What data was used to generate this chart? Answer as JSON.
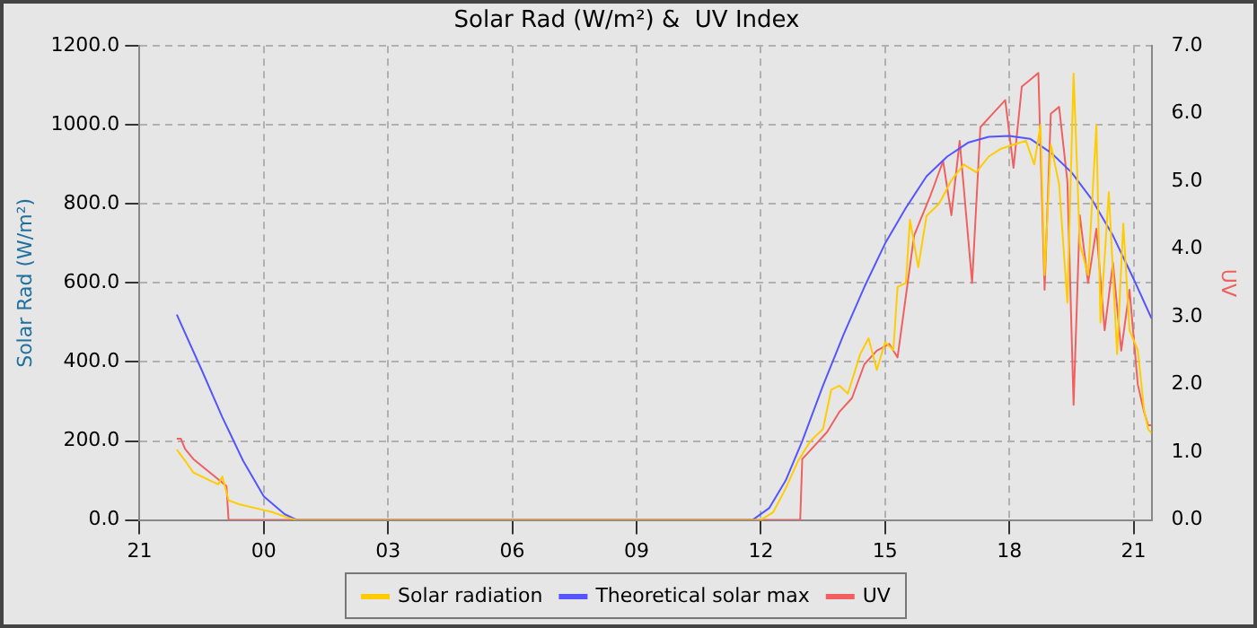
{
  "chart_data": {
    "type": "line",
    "title": "Solar Rad (W/m²) &  UV Index",
    "ylabel": "Solar Rad (W/m²)",
    "y2label": "UV",
    "xlim": [
      "2000-01-01T21:00",
      "2000-01-02T21:26"
    ],
    "xticks": [
      {
        "value": "2000-01-01T21:00",
        "label": "21"
      },
      {
        "value": "2000-01-02T00:00",
        "label": "00"
      },
      {
        "value": "2000-01-02T03:00",
        "label": "03"
      },
      {
        "value": "2000-01-02T06:00",
        "label": "06"
      },
      {
        "value": "2000-01-02T09:00",
        "label": "09"
      },
      {
        "value": "2000-01-02T12:00",
        "label": "12"
      },
      {
        "value": "2000-01-02T15:00",
        "label": "15"
      },
      {
        "value": "2000-01-02T18:00",
        "label": "18"
      },
      {
        "value": "2000-01-02T21:00",
        "label": "21"
      }
    ],
    "ylim": [
      0,
      1200
    ],
    "yticks": [
      {
        "value": 0,
        "label": "0.0"
      },
      {
        "value": 200,
        "label": "200.0"
      },
      {
        "value": 400,
        "label": "400.0"
      },
      {
        "value": 600,
        "label": "600.0"
      },
      {
        "value": 800,
        "label": "800.0"
      },
      {
        "value": 1000,
        "label": "1000.0"
      },
      {
        "value": 1200,
        "label": "1200.0"
      }
    ],
    "y2lim": [
      0,
      7
    ],
    "y2ticks": [
      {
        "value": 0,
        "label": "0.0"
      },
      {
        "value": 1,
        "label": "1.0"
      },
      {
        "value": 2,
        "label": "2.0"
      },
      {
        "value": 3,
        "label": "3.0"
      },
      {
        "value": 4,
        "label": "4.0"
      },
      {
        "value": 5,
        "label": "5.0"
      },
      {
        "value": 6,
        "label": "6.0"
      },
      {
        "value": 7,
        "label": "7.0"
      }
    ],
    "grid": true,
    "legend": "bottom",
    "marker": "none",
    "line_style": "solid",
    "series": [
      {
        "name": "Solar radiation",
        "color": "#ffcc00",
        "x": [
          "2000-01-01T21:54",
          "2000-01-01T22:06",
          "2000-01-01T22:18",
          "2000-01-01T22:30",
          "2000-01-01T22:42",
          "2000-01-01T22:54",
          "2000-01-01T23:00",
          "2000-01-01T23:09",
          "2000-01-01T23:24",
          "2000-01-01T23:48",
          "2000-01-02T00:12",
          "2000-01-02T00:36",
          "2000-01-02T00:48",
          "2000-01-02T12:00",
          "2000-01-02T12:18",
          "2000-01-02T12:36",
          "2000-01-02T12:54",
          "2000-01-02T13:12",
          "2000-01-02T13:30",
          "2000-01-02T13:42",
          "2000-01-02T13:54",
          "2000-01-02T14:06",
          "2000-01-02T14:24",
          "2000-01-02T14:36",
          "2000-01-02T14:48",
          "2000-01-02T15:00",
          "2000-01-02T15:12",
          "2000-01-02T15:18",
          "2000-01-02T15:30",
          "2000-01-02T15:36",
          "2000-01-02T15:48",
          "2000-01-02T16:00",
          "2000-01-02T16:18",
          "2000-01-02T16:36",
          "2000-01-02T16:54",
          "2000-01-02T17:12",
          "2000-01-02T17:30",
          "2000-01-02T17:48",
          "2000-01-02T18:06",
          "2000-01-02T18:24",
          "2000-01-02T18:36",
          "2000-01-02T18:45",
          "2000-01-02T18:51",
          "2000-01-02T19:00",
          "2000-01-02T19:12",
          "2000-01-02T19:24",
          "2000-01-02T19:33",
          "2000-01-02T19:42",
          "2000-01-02T19:54",
          "2000-01-02T20:06",
          "2000-01-02T20:12",
          "2000-01-02T20:24",
          "2000-01-02T20:36",
          "2000-01-02T20:45",
          "2000-01-02T20:54",
          "2000-01-02T21:06",
          "2000-01-02T21:15",
          "2000-01-02T21:21",
          "2000-01-02T21:26"
        ],
        "values": [
          178,
          150,
          120,
          110,
          100,
          90,
          110,
          50,
          40,
          30,
          20,
          5,
          0,
          0,
          20,
          80,
          150,
          200,
          230,
          330,
          340,
          320,
          420,
          460,
          380,
          450,
          430,
          590,
          600,
          760,
          640,
          770,
          800,
          860,
          900,
          880,
          920,
          940,
          950,
          960,
          900,
          1000,
          620,
          950,
          850,
          550,
          1130,
          700,
          620,
          1000,
          500,
          830,
          420,
          750,
          480,
          430,
          280,
          230,
          220
        ]
      },
      {
        "name": "Theoretical solar max",
        "color": "#5555ff",
        "x": [
          "2000-01-01T21:54",
          "2000-01-01T22:30",
          "2000-01-01T23:00",
          "2000-01-01T23:30",
          "2000-01-02T00:00",
          "2000-01-02T00:30",
          "2000-01-02T00:48",
          "2000-01-02T11:48",
          "2000-01-02T12:12",
          "2000-01-02T12:36",
          "2000-01-02T13:00",
          "2000-01-02T13:30",
          "2000-01-02T14:00",
          "2000-01-02T14:30",
          "2000-01-02T15:00",
          "2000-01-02T15:30",
          "2000-01-02T16:00",
          "2000-01-02T16:30",
          "2000-01-02T17:00",
          "2000-01-02T17:30",
          "2000-01-02T18:00",
          "2000-01-02T18:30",
          "2000-01-02T19:00",
          "2000-01-02T19:30",
          "2000-01-02T20:00",
          "2000-01-02T20:30",
          "2000-01-02T21:00",
          "2000-01-02T21:26"
        ],
        "values": [
          520,
          380,
          260,
          150,
          60,
          15,
          0,
          0,
          30,
          100,
          200,
          340,
          470,
          590,
          700,
          790,
          870,
          920,
          955,
          970,
          972,
          965,
          930,
          880,
          810,
          720,
          610,
          510
        ]
      },
      {
        "name": "UV",
        "color": "#f06060",
        "axis": "y2",
        "x": [
          "2000-01-01T21:54",
          "2000-01-01T22:00",
          "2000-01-01T22:06",
          "2000-01-01T22:18",
          "2000-01-01T22:36",
          "2000-01-01T22:54",
          "2000-01-01T23:06",
          "2000-01-01T23:09",
          "2000-01-02T12:57",
          "2000-01-02T13:00",
          "2000-01-02T13:18",
          "2000-01-02T13:36",
          "2000-01-02T13:54",
          "2000-01-02T14:12",
          "2000-01-02T14:30",
          "2000-01-02T14:48",
          "2000-01-02T15:06",
          "2000-01-02T15:18",
          "2000-01-02T15:30",
          "2000-01-02T15:42",
          "2000-01-02T15:54",
          "2000-01-02T16:06",
          "2000-01-02T16:24",
          "2000-01-02T16:36",
          "2000-01-02T16:48",
          "2000-01-02T17:06",
          "2000-01-02T17:18",
          "2000-01-02T17:36",
          "2000-01-02T17:54",
          "2000-01-02T18:06",
          "2000-01-02T18:18",
          "2000-01-02T18:30",
          "2000-01-02T18:42",
          "2000-01-02T18:51",
          "2000-01-02T19:00",
          "2000-01-02T19:12",
          "2000-01-02T19:24",
          "2000-01-02T19:33",
          "2000-01-02T19:42",
          "2000-01-02T19:54",
          "2000-01-02T20:06",
          "2000-01-02T20:18",
          "2000-01-02T20:30",
          "2000-01-02T20:42",
          "2000-01-02T20:54",
          "2000-01-02T21:06",
          "2000-01-02T21:15",
          "2000-01-02T21:21",
          "2000-01-02T21:26"
        ],
        "values": [
          1.2,
          1.2,
          1.05,
          0.9,
          0.75,
          0.6,
          0.5,
          0,
          0,
          0.9,
          1.1,
          1.3,
          1.6,
          1.8,
          2.3,
          2.5,
          2.6,
          2.4,
          3.3,
          4.2,
          4.5,
          4.8,
          5.3,
          4.5,
          5.6,
          3.5,
          5.8,
          6.0,
          6.2,
          5.2,
          6.4,
          6.5,
          6.6,
          3.4,
          6.0,
          6.1,
          5.0,
          1.7,
          4.5,
          3.5,
          4.3,
          2.8,
          3.8,
          2.5,
          3.4,
          2.0,
          1.6,
          1.4,
          1.4
        ]
      }
    ]
  }
}
